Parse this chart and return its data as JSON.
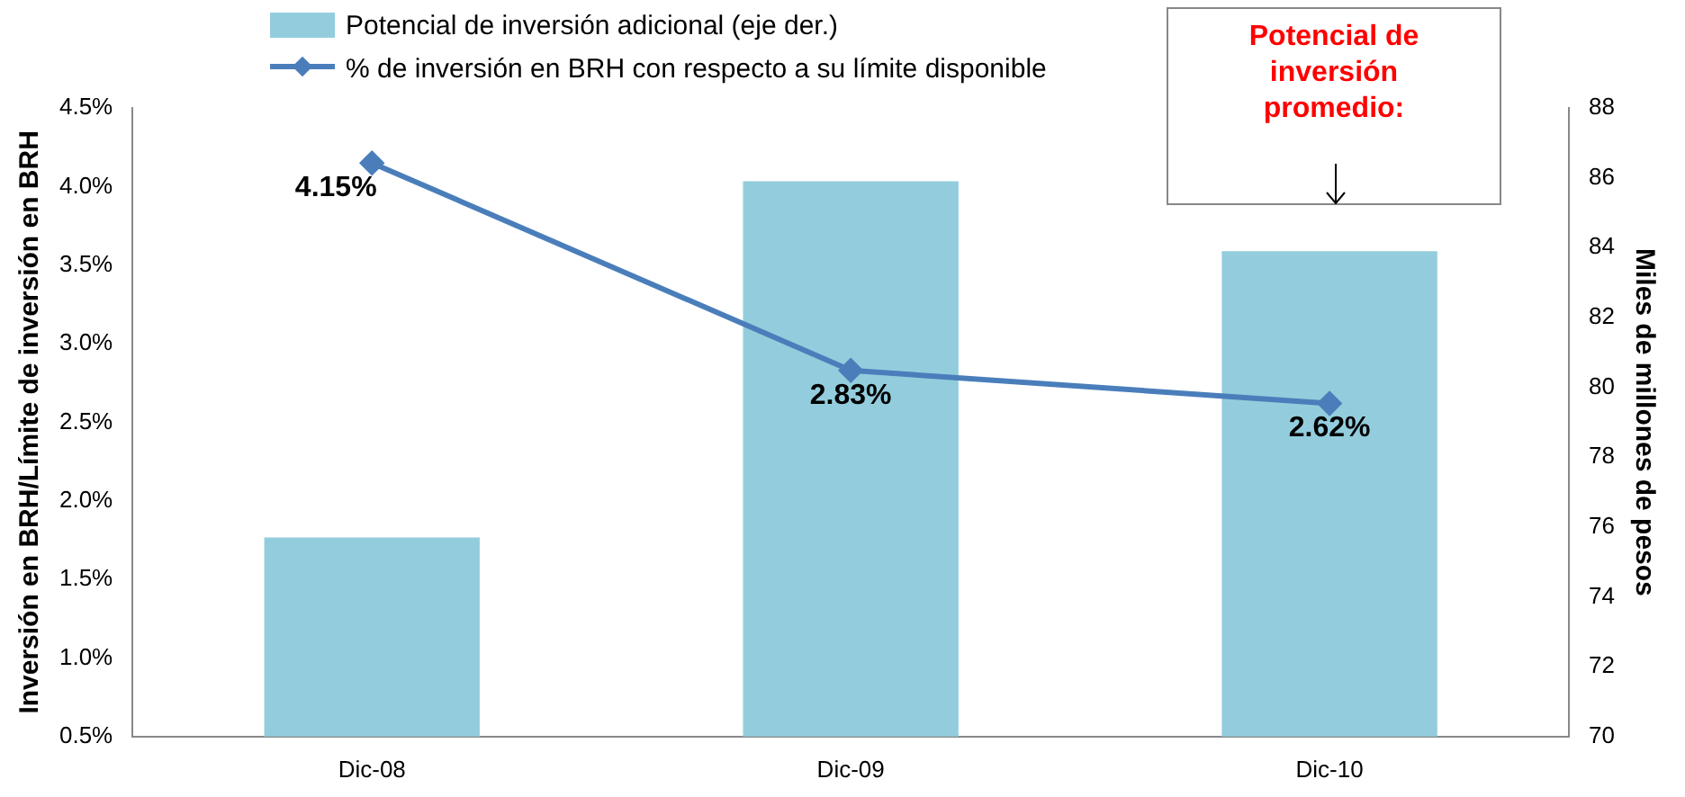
{
  "chart_data": {
    "type": "bar",
    "ylabel": "Inversión en BRH/Límite de inversión en BRH",
    "y2label": "Miles de millones de pesos",
    "categories": [
      "Dic-08",
      "Dic-09",
      "Dic-10"
    ],
    "series": [
      {
        "name": "Potencial de inversión adicional (eje der.)",
        "axis": "y2",
        "color": "#93cddd",
        "values": [
          75.7,
          85.9,
          83.9
        ]
      },
      {
        "name": "% de inversión en BRH con respecto a su límite disponible",
        "type": "line",
        "color": "#4a7ebb",
        "marker": "diamond",
        "values": [
          4.15,
          2.83,
          2.62
        ],
        "value_labels": [
          "4.15%",
          "2.83%",
          "2.62%"
        ]
      }
    ],
    "ylim": [
      0.5,
      4.5
    ],
    "yticks": [
      {
        "value": 0.5,
        "label": "0.5%"
      },
      {
        "value": 1,
        "label": "1.0%"
      },
      {
        "value": 1.5,
        "label": "1.5%"
      },
      {
        "value": 2,
        "label": "2.0%"
      },
      {
        "value": 2.5,
        "label": "2.5%"
      },
      {
        "value": 3,
        "label": "3.0%"
      },
      {
        "value": 3.5,
        "label": "3.5%"
      },
      {
        "value": 4,
        "label": "4.0%"
      },
      {
        "value": 4.5,
        "label": "4.5%"
      }
    ],
    "y2lim": [
      70,
      88
    ],
    "y2ticks": [
      70,
      72,
      74,
      76,
      78,
      80,
      82,
      84,
      86,
      88
    ],
    "grid": false,
    "legend": "top",
    "annotations": [
      "Potencial de inversión promedio:"
    ]
  }
}
